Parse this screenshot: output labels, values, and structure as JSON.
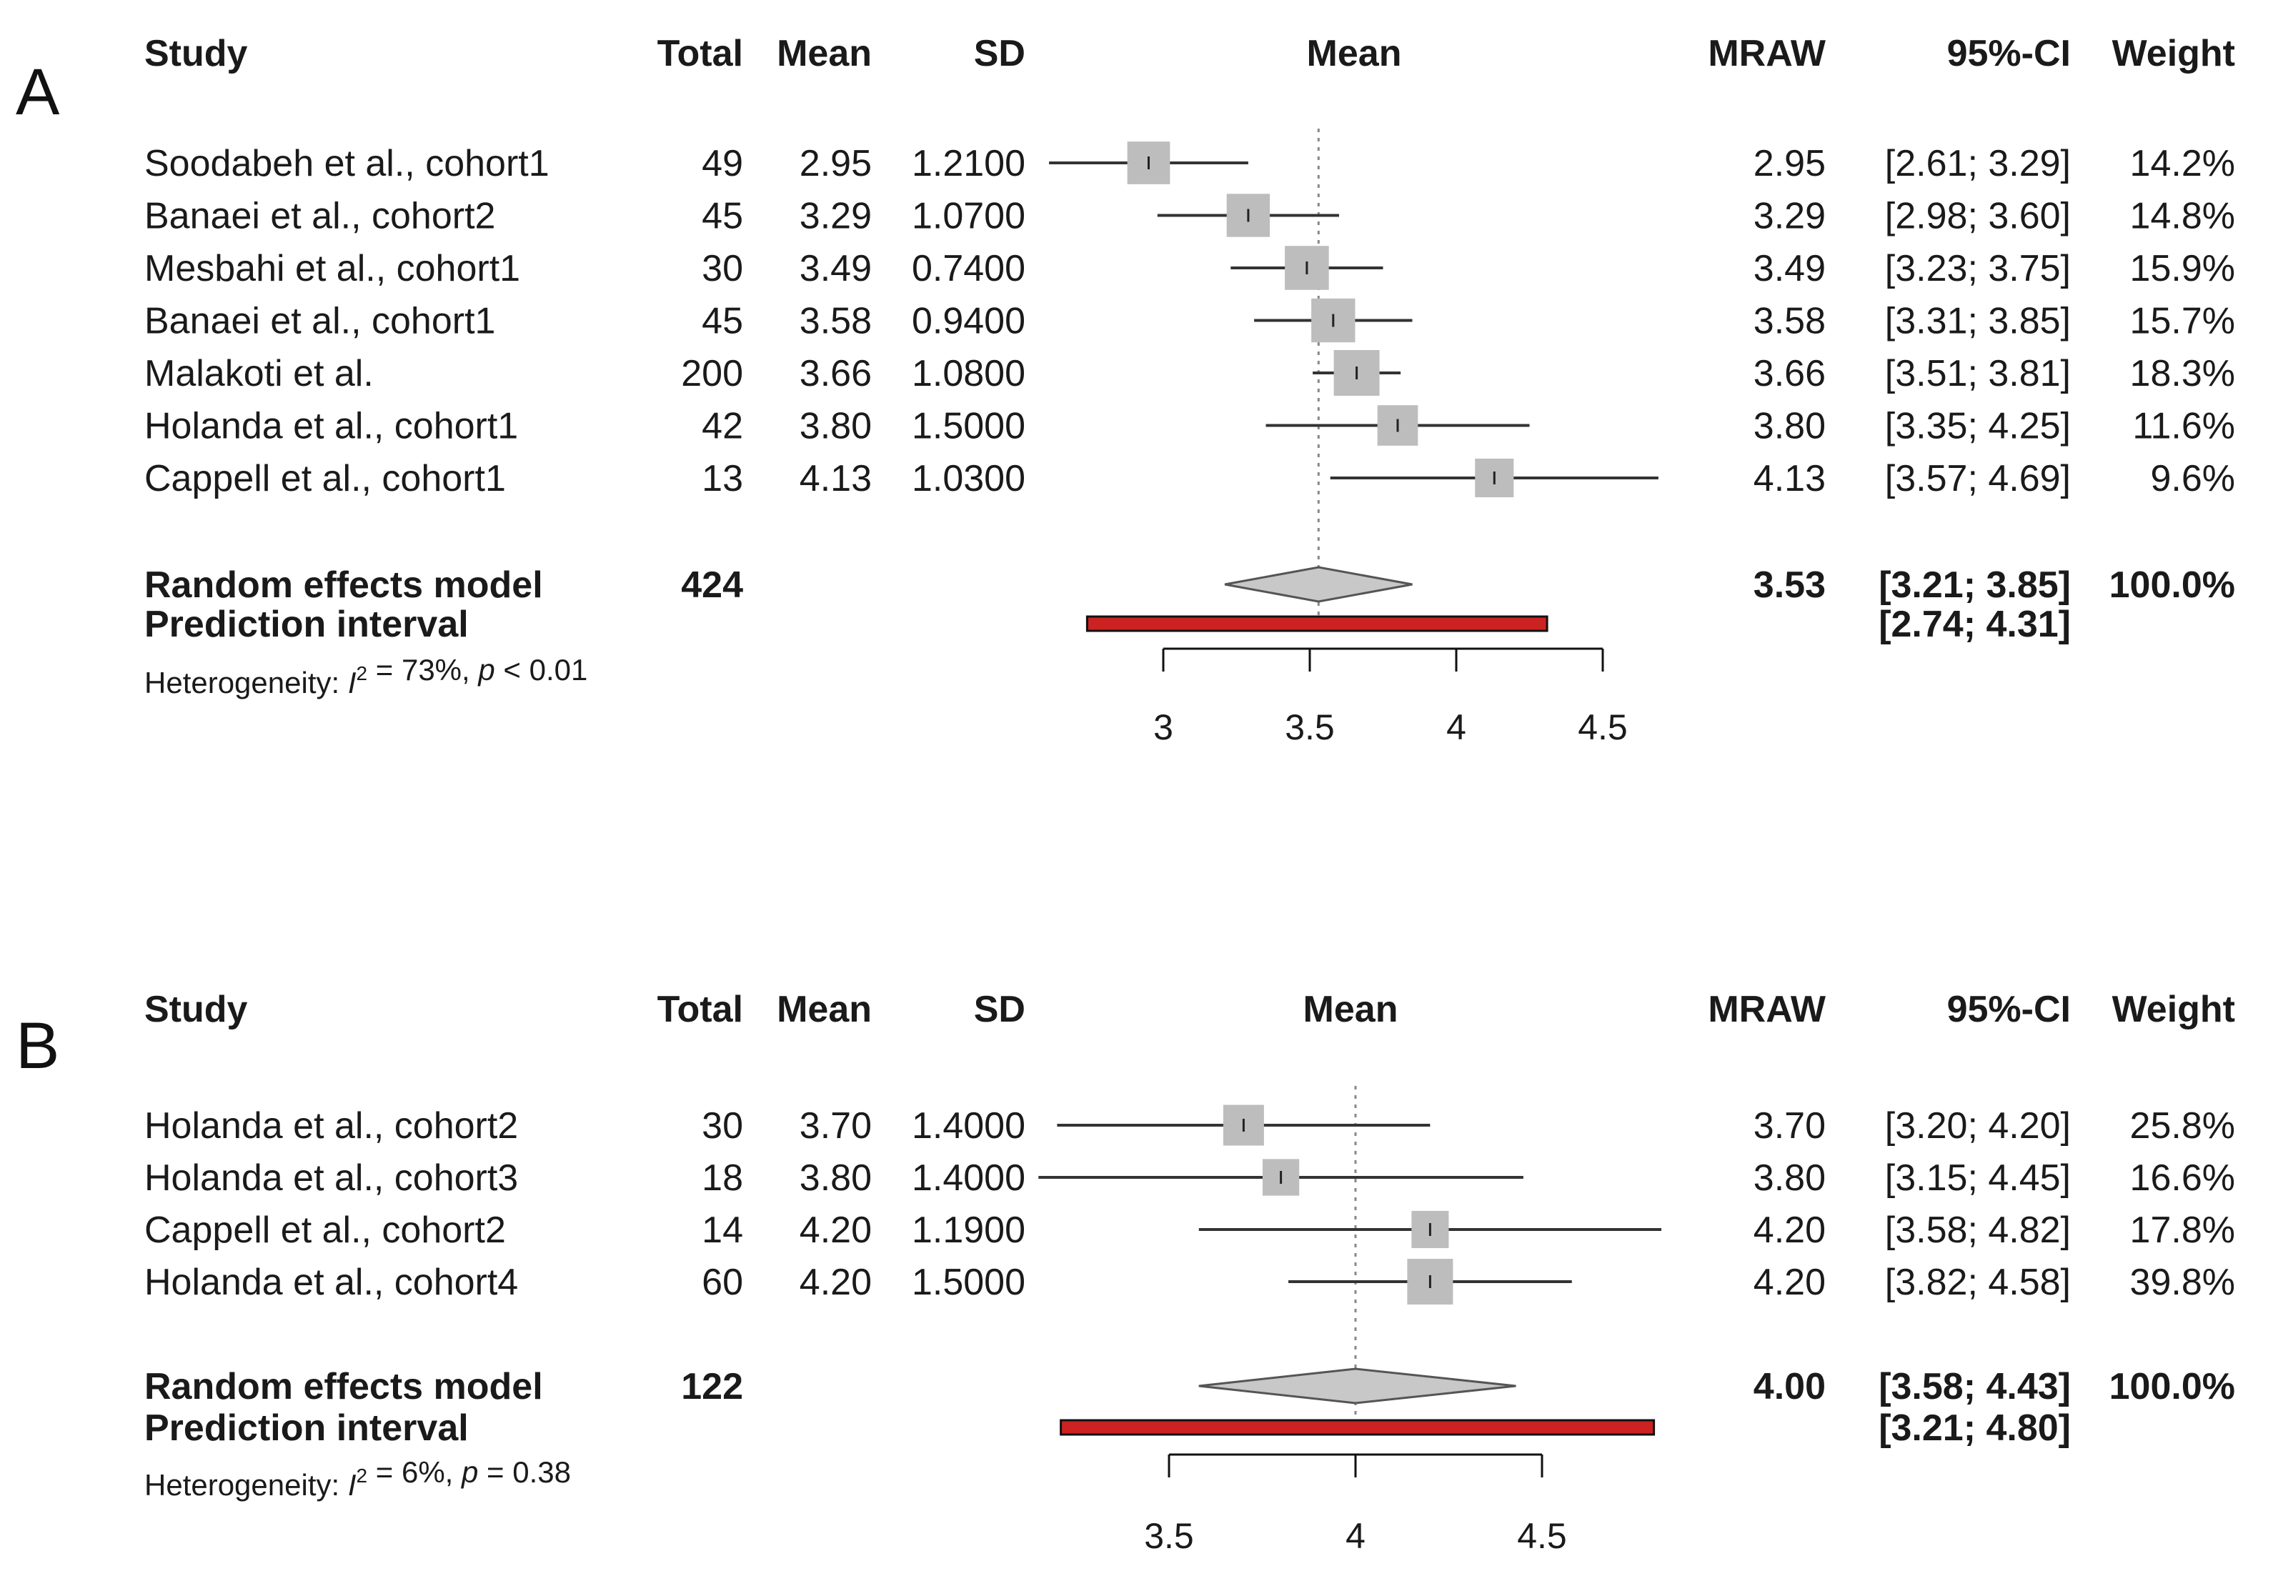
{
  "colors": {
    "text": "#1a1a1a",
    "square": "#bdbdbd",
    "diamond": "#c8c8c8",
    "diamond_stroke": "#555555",
    "ci_line": "#333333",
    "prediction": "#cc2222",
    "ref_line": "#888888"
  },
  "columns": {
    "study": "Study",
    "total": "Total",
    "mean": "Mean",
    "sd": "SD",
    "plot_header": "Mean",
    "mraw": "MRAW",
    "ci": "95%-CI",
    "weight": "Weight"
  },
  "chart_data": [
    {
      "type": "forest",
      "panel_label": "A",
      "xlim": [
        3,
        4.5
      ],
      "ref_value": 3.53,
      "ticks": [
        "3",
        "3.5",
        "4",
        "4.5"
      ],
      "tick_values": [
        3,
        3.5,
        4,
        4.5
      ],
      "studies": [
        {
          "study": "Soodabeh et al., cohort1",
          "total": "49",
          "mean": "2.95",
          "sd": "1.2100",
          "mraw": "2.95",
          "ci": "[2.61; 3.29]",
          "weight": "14.2%",
          "est": 2.95,
          "lo": 2.61,
          "hi": 3.29,
          "w": 14.2
        },
        {
          "study": "Banaei et al., cohort2",
          "total": "45",
          "mean": "3.29",
          "sd": "1.0700",
          "mraw": "3.29",
          "ci": "[2.98; 3.60]",
          "weight": "14.8%",
          "est": 3.29,
          "lo": 2.98,
          "hi": 3.6,
          "w": 14.8
        },
        {
          "study": "Mesbahi et al., cohort1",
          "total": "30",
          "mean": "3.49",
          "sd": "0.7400",
          "mraw": "3.49",
          "ci": "[3.23; 3.75]",
          "weight": "15.9%",
          "est": 3.49,
          "lo": 3.23,
          "hi": 3.75,
          "w": 15.9
        },
        {
          "study": "Banaei et al., cohort1",
          "total": "45",
          "mean": "3.58",
          "sd": "0.9400",
          "mraw": "3.58",
          "ci": "[3.31; 3.85]",
          "weight": "15.7%",
          "est": 3.58,
          "lo": 3.31,
          "hi": 3.85,
          "w": 15.7
        },
        {
          "study": "Malakoti et al.",
          "total": "200",
          "mean": "3.66",
          "sd": "1.0800",
          "mraw": "3.66",
          "ci": "[3.51; 3.81]",
          "weight": "18.3%",
          "est": 3.66,
          "lo": 3.51,
          "hi": 3.81,
          "w": 18.3
        },
        {
          "study": "Holanda et al., cohort1",
          "total": "42",
          "mean": "3.80",
          "sd": "1.5000",
          "mraw": "3.80",
          "ci": "[3.35; 4.25]",
          "weight": "11.6%",
          "est": 3.8,
          "lo": 3.35,
          "hi": 4.25,
          "w": 11.6
        },
        {
          "study": "Cappell et al., cohort1",
          "total": "13",
          "mean": "4.13",
          "sd": "1.0300",
          "mraw": "4.13",
          "ci": "[3.57; 4.69]",
          "weight": "9.6%",
          "est": 4.13,
          "lo": 3.57,
          "hi": 4.69,
          "w": 9.6
        }
      ],
      "summary": {
        "label": "Random effects model",
        "total": "424",
        "mraw": "3.53",
        "ci": "[3.21; 3.85]",
        "weight": "100.0%",
        "est": 3.53,
        "lo": 3.21,
        "hi": 3.85
      },
      "prediction": {
        "label": "Prediction interval",
        "ci": "[2.74; 4.31]",
        "lo": 2.74,
        "hi": 4.31
      },
      "heterogeneity": {
        "prefix": "Heterogeneity: ",
        "i2_symbol": "I",
        "i2_sup": "2",
        "i2_value": " = 73%, ",
        "p_symbol": "p",
        "p_value": " < 0.01"
      }
    },
    {
      "type": "forest",
      "panel_label": "B",
      "xlim": [
        3.5,
        4.5
      ],
      "ref_value": 4.0,
      "ticks": [
        "3.5",
        "4",
        "4.5"
      ],
      "tick_values": [
        3.5,
        4,
        4.5
      ],
      "studies": [
        {
          "study": "Holanda et al., cohort2",
          "total": "30",
          "mean": "3.70",
          "sd": "1.4000",
          "mraw": "3.70",
          "ci": "[3.20; 4.20]",
          "weight": "25.8%",
          "est": 3.7,
          "lo": 3.2,
          "hi": 4.2,
          "w": 25.8
        },
        {
          "study": "Holanda et al., cohort3",
          "total": "18",
          "mean": "3.80",
          "sd": "1.4000",
          "mraw": "3.80",
          "ci": "[3.15; 4.45]",
          "weight": "16.6%",
          "est": 3.8,
          "lo": 3.15,
          "hi": 4.45,
          "w": 16.6
        },
        {
          "study": "Cappell et al., cohort2",
          "total": "14",
          "mean": "4.20",
          "sd": "1.1900",
          "mraw": "4.20",
          "ci": "[3.58; 4.82]",
          "weight": "17.8%",
          "est": 4.2,
          "lo": 3.58,
          "hi": 4.82,
          "w": 17.8
        },
        {
          "study": "Holanda et al., cohort4",
          "total": "60",
          "mean": "4.20",
          "sd": "1.5000",
          "mraw": "4.20",
          "ci": "[3.82; 4.58]",
          "weight": "39.8%",
          "est": 4.2,
          "lo": 3.82,
          "hi": 4.58,
          "w": 39.8
        }
      ],
      "summary": {
        "label": "Random effects model",
        "total": "122",
        "mraw": "4.00",
        "ci": "[3.58; 4.43]",
        "weight": "100.0%",
        "est": 4.0,
        "lo": 3.58,
        "hi": 4.43
      },
      "prediction": {
        "label": "Prediction interval",
        "ci": "[3.21; 4.80]",
        "lo": 3.21,
        "hi": 4.8
      },
      "heterogeneity": {
        "prefix": "Heterogeneity: ",
        "i2_symbol": "I",
        "i2_sup": "2",
        "i2_value": " = 6%, ",
        "p_symbol": "p",
        "p_value": " = 0.38"
      }
    }
  ]
}
